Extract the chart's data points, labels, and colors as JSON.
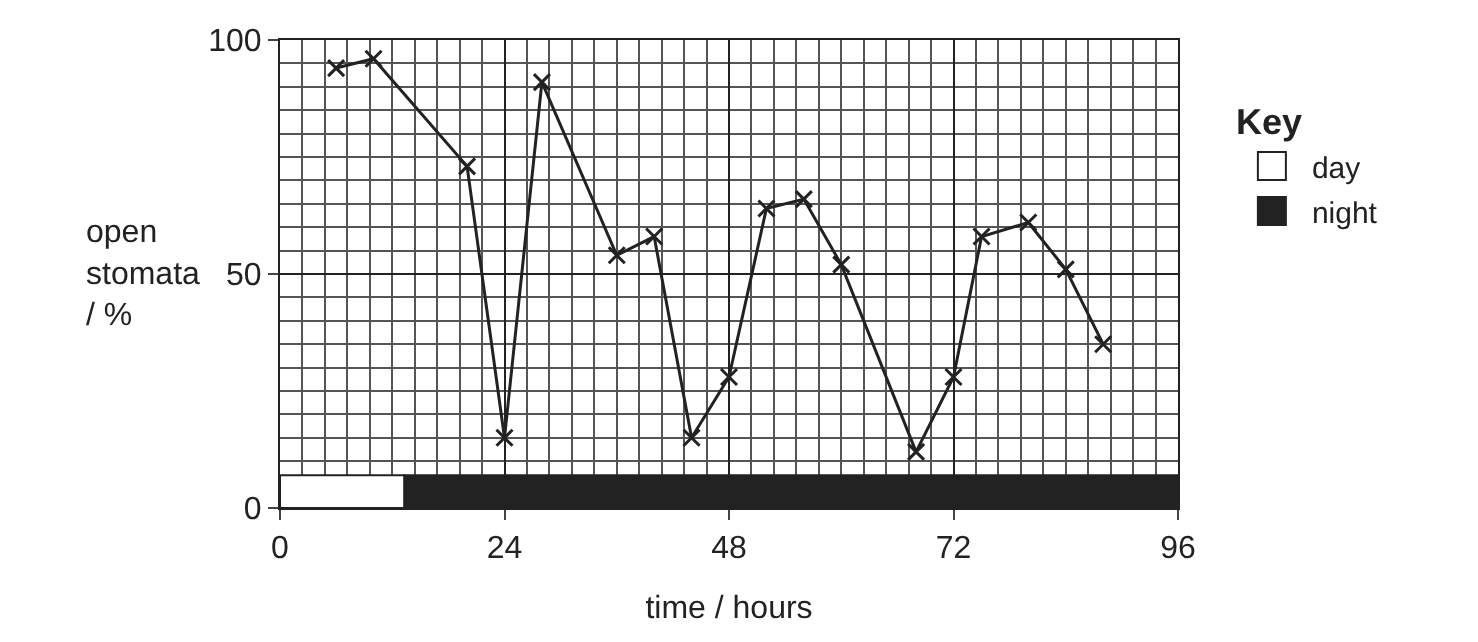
{
  "chart_data": {
    "type": "line",
    "xlabel": "time / hours",
    "ylabel": "open\nstomata\n/ %",
    "legend_title": "Key",
    "legend": "right",
    "x": [
      6,
      10,
      20,
      24,
      28,
      36,
      40,
      44,
      48,
      52,
      56,
      60,
      68,
      72,
      75,
      80,
      84,
      88
    ],
    "series": [
      {
        "color": "#222222",
        "values": [
          94,
          96,
          73,
          15,
          91,
          54,
          58,
          15,
          28,
          64,
          66,
          52,
          12,
          28,
          58,
          61,
          51,
          35
        ]
      }
    ],
    "marker": "cross",
    "line_style": "solid",
    "grid": true,
    "xlim": [
      0,
      96
    ],
    "xticks": [
      0,
      24,
      48,
      72,
      96
    ],
    "ylim": [
      0,
      100
    ],
    "yticks": [
      0,
      50,
      100
    ],
    "bands": [
      {
        "axis": "x",
        "from": 0,
        "to": 13.3,
        "label": "day",
        "color": "#ffffff"
      },
      {
        "axis": "x",
        "from": 13.3,
        "to": 96,
        "label": "night",
        "color": "#222222"
      }
    ]
  }
}
